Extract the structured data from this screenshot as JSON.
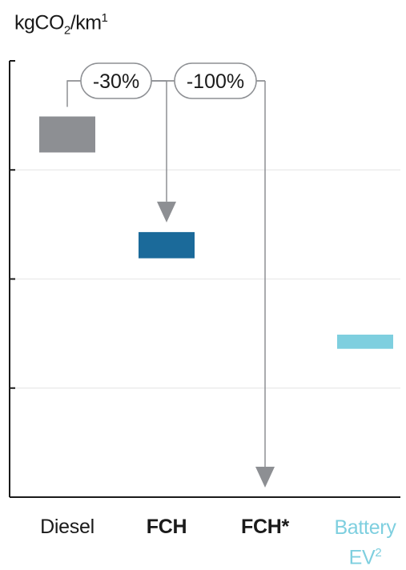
{
  "chart_data": {
    "type": "bar",
    "ylabel": {
      "base": "kgCO",
      "sub": "2",
      "mid": "/km",
      "sup": "1"
    },
    "categories": [
      {
        "label": "Diesel",
        "sup": "",
        "bold": false,
        "color": "#1a1a1a"
      },
      {
        "label": "FCH",
        "sup": "",
        "bold": true,
        "color": "#1a1a1a"
      },
      {
        "label": "FCH*",
        "sup": "",
        "bold": true,
        "color": "#1a1a1a"
      },
      {
        "label": "Battery EV",
        "sup": "2",
        "bold": false,
        "color": "#7ecfdf"
      }
    ],
    "ylim": [
      0,
      4
    ],
    "yticks": [
      1,
      2,
      3,
      4
    ],
    "bars": [
      {
        "category": "Diesel",
        "low": 3.16,
        "high": 3.49,
        "color": "#8d8f93"
      },
      {
        "category": "FCH",
        "low": 2.19,
        "high": 2.43,
        "color": "#1b6a9a"
      },
      {
        "category": "Battery EV",
        "low": 1.36,
        "high": 1.49,
        "color": "#7ecfdf"
      }
    ],
    "annotations": [
      {
        "text": "-30%",
        "from": "Diesel",
        "to": "FCH"
      },
      {
        "text": "-100%",
        "from": "Diesel",
        "to": "FCH*"
      }
    ],
    "grid": true
  }
}
